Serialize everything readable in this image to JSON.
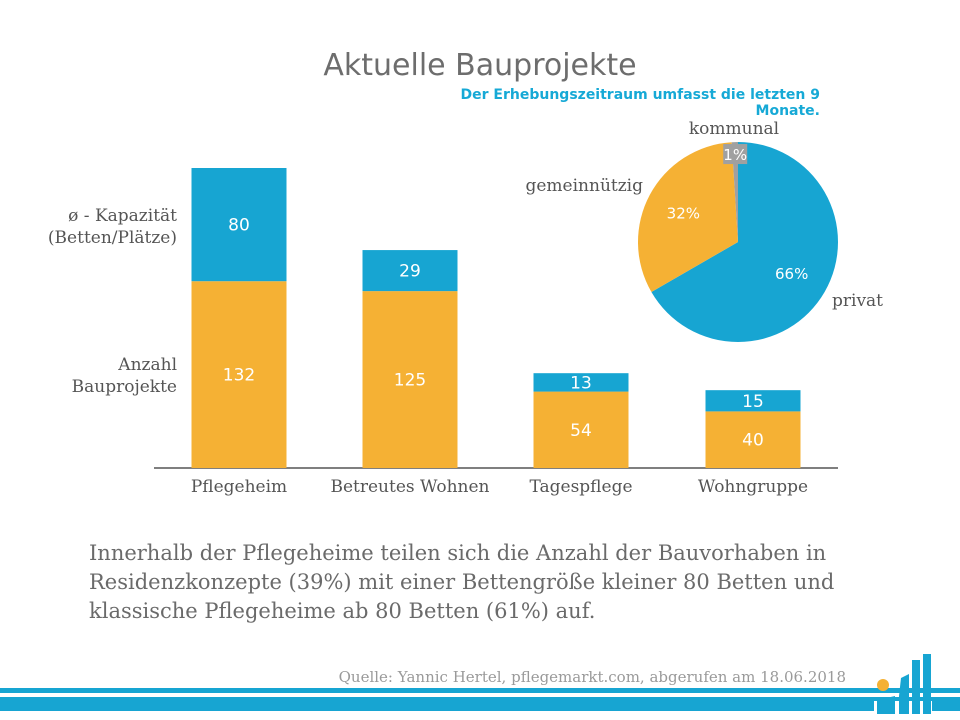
{
  "chart_data": [
    {
      "type": "bar",
      "stacked": true,
      "title": "Aktuelle Bauprojekte",
      "categories": [
        "Pflegeheim",
        "Betreutes Wohnen",
        "Tagespflege",
        "Wohngruppe"
      ],
      "series": [
        {
          "name": "Anzahl Bauprojekte",
          "values": [
            132,
            125,
            54,
            40
          ],
          "color": "#f5b134"
        },
        {
          "name": "ø - Kapazität (Betten/Plätze)",
          "values": [
            80,
            29,
            13,
            15
          ],
          "color": "#17a5d2"
        }
      ],
      "label_lines": {
        "capacity": [
          "ø - Kapazität",
          "(Betten/Plätze)"
        ],
        "count": [
          "Anzahl",
          "Bauprojekte"
        ]
      },
      "ylim": [
        0,
        212
      ],
      "grid": false
    },
    {
      "type": "pie",
      "subtitle": "Der Erhebungszeitraum umfasst die letzten 9 Monate.",
      "slices": [
        {
          "label": "privat",
          "value": 66,
          "value_label": "66%",
          "color": "#17a5d2"
        },
        {
          "label": "gemeinnützig",
          "value": 32,
          "value_label": "32%",
          "color": "#f5b134"
        },
        {
          "label": "kommunal",
          "value": 1,
          "value_label": "1%",
          "color": "#a0a0a0"
        }
      ]
    }
  ],
  "description": "Innerhalb der Pflegeheime teilen sich die Anzahl der Bauvorhaben in Residenzkonzepte (39%) mit einer Bettengröße kleiner 80 Betten und klassische Pflegeheime ab 80 Betten (61%) auf.",
  "source": "Quelle: Yannic Hertel, pflegemarkt.com, abgerufen am 18.06.2018",
  "colors": {
    "accent": "#17a5d2",
    "yellow": "#f5b134",
    "gray": "#a0a0a0"
  }
}
